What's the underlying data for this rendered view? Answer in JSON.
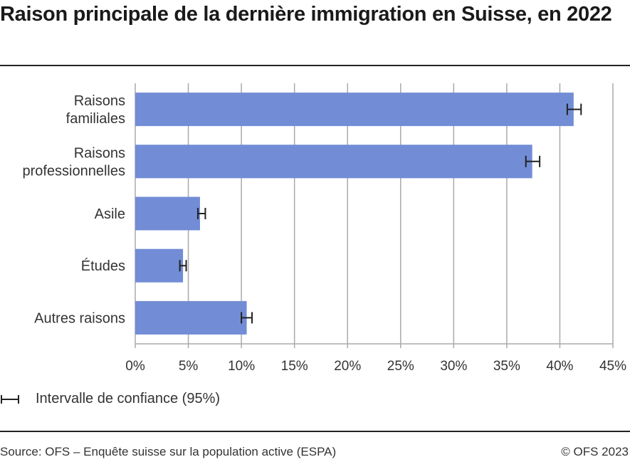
{
  "title": "Raison principale de la dernière immigration en Suisse, en 2022",
  "chart_data": {
    "type": "bar",
    "orientation": "horizontal",
    "categories": [
      [
        "Raisons",
        "familiales"
      ],
      [
        "Raisons",
        "professionnelles"
      ],
      [
        "Asile"
      ],
      [
        "Études"
      ],
      [
        "Autres raisons"
      ]
    ],
    "values": [
      41.3,
      37.4,
      6.1,
      4.5,
      10.5
    ],
    "ci_low": [
      40.7,
      36.8,
      5.9,
      4.2,
      10.0
    ],
    "ci_high": [
      42.0,
      38.1,
      6.6,
      4.8,
      11.0
    ],
    "xlim": [
      0,
      45
    ],
    "xticks": [
      0,
      5,
      10,
      15,
      20,
      25,
      30,
      35,
      40,
      45
    ],
    "xtick_labels": [
      "0%",
      "5%",
      "10%",
      "15%",
      "20%",
      "25%",
      "30%",
      "35%",
      "40%",
      "45%"
    ],
    "grid": "vertical",
    "bar_color": "#728dd6",
    "legend": {
      "label": "Intervalle de confiance (95%)",
      "position": "bottom-left"
    }
  },
  "footer": {
    "source": "Source: OFS – Enquête suisse sur la population active (ESPA)",
    "copyright": "© OFS 2023"
  }
}
